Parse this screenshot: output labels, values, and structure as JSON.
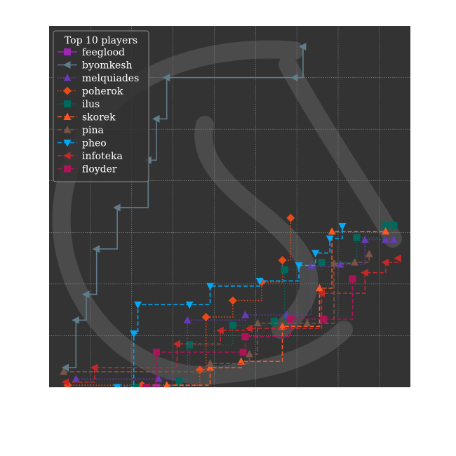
{
  "chart_data": {
    "type": "line",
    "step": "post",
    "title": "",
    "xlabel": "",
    "ylabel": "",
    "xlim": [
      0,
      17.5
    ],
    "ylim": [
      0,
      35
    ],
    "grid": true,
    "legend": {
      "title": "Top 10 players",
      "placement": "upper-left"
    },
    "background": "#333333",
    "watermark": "large faded logo mark (dark grey)",
    "series": [
      {
        "name": "feeglood",
        "color": "#9c27b0",
        "linestyle": "solid",
        "marker": "square",
        "x": [
          5.2
        ],
        "y": [
          0
        ]
      },
      {
        "name": "byomkesh",
        "color": "#607d8b",
        "linestyle": "solid",
        "marker": "triangle-left",
        "x": [
          0.8,
          1.3,
          1.8,
          2.3,
          3.3,
          4.8,
          5.2,
          5.7,
          11.9,
          12.3
        ],
        "y": [
          1.9,
          6.5,
          9,
          13.4,
          17.4,
          22,
          26,
          30,
          30,
          33
        ]
      },
      {
        "name": "melquiades",
        "color": "#673ab7",
        "linestyle": "dotted",
        "marker": "triangle-up",
        "x": [
          1.3,
          5.3,
          6.7,
          9.5,
          11.5,
          12.7,
          14.1,
          15.3,
          16.3,
          16.7
        ],
        "y": [
          0.8,
          0.8,
          6.5,
          7,
          7,
          11.7,
          11.9,
          14.3,
          14.3,
          14.3
        ]
      },
      {
        "name": "poherok",
        "color": "#e64a19",
        "linestyle": "dotted",
        "marker": "diamond",
        "x": [
          0.9,
          4.5,
          7.3,
          7.6,
          8.9,
          10.3,
          11.3,
          11.7
        ],
        "y": [
          0.2,
          0.2,
          1.7,
          6.8,
          8.4,
          10.2,
          12.3,
          16.4
        ]
      },
      {
        "name": "ilus",
        "color": "#00695c",
        "linestyle": "dotted",
        "marker": "square",
        "x": [
          4.2,
          6.3,
          6.8,
          8.9,
          10.9,
          11.4,
          13.2,
          14.9,
          16.3,
          16.7
        ],
        "y": [
          0,
          0.6,
          4.1,
          6,
          6.4,
          11.4,
          12.1,
          14.5,
          15.7,
          15.7
        ]
      },
      {
        "name": "skorek",
        "color": "#ff5722",
        "linestyle": "dashed",
        "marker": "triangle-up",
        "x": [
          5.7,
          7.8,
          9.3,
          11.3,
          13.1,
          13.7,
          16.3
        ],
        "y": [
          0.2,
          1.9,
          2.5,
          5.9,
          9.6,
          15.1,
          15.1
        ]
      },
      {
        "name": "pina",
        "color": "#795548",
        "linestyle": "dashed",
        "marker": "triangle-up",
        "x": [
          0.7,
          7.8,
          9.7,
          10.1,
          12.5,
          13.8,
          14.8,
          15.5
        ],
        "y": [
          1.5,
          2.3,
          3.2,
          6.2,
          6.2,
          12,
          12.1,
          12.9
        ]
      },
      {
        "name": "pheo",
        "color": "#03a9f4",
        "linestyle": "dashed",
        "marker": "triangle-down",
        "x": [
          3.3,
          4.1,
          4.3,
          6.8,
          7.8,
          10.2,
          12.1,
          12.9,
          13.6,
          14.2
        ],
        "y": [
          0,
          5.2,
          8,
          8,
          9.8,
          10.3,
          11.8,
          13,
          14.4,
          15.6
        ]
      },
      {
        "name": "infoteka",
        "color": "#c62828",
        "linestyle": "dashed",
        "marker": "triangle-left",
        "x": [
          0.8,
          2.2,
          6.2,
          8.3,
          9.7,
          13.2,
          15.3,
          16.3,
          16.9
        ],
        "y": [
          0.5,
          1.9,
          4.2,
          5.5,
          5.7,
          9.1,
          11.1,
          12.1,
          12.5
        ]
      },
      {
        "name": "floyder",
        "color": "#ad1457",
        "linestyle": "dashed",
        "marker": "square",
        "x": [
          4.7,
          5.2,
          9.4,
          9.5,
          11.7,
          13.3,
          14.7
        ],
        "y": [
          0,
          3.4,
          3.4,
          4.9,
          6.6,
          6.6,
          10.5
        ]
      }
    ]
  }
}
